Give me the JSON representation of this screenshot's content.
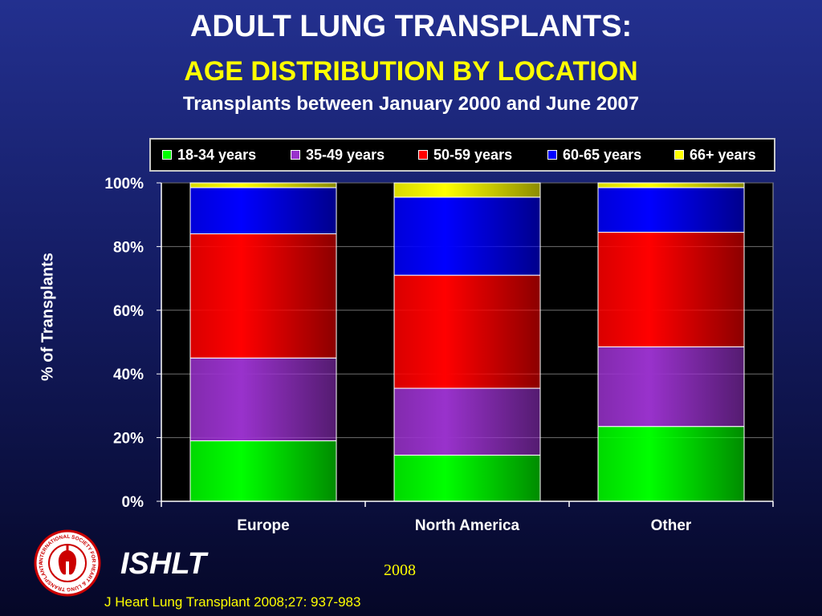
{
  "header": {
    "title": "ADULT LUNG TRANSPLANTS:",
    "subtitle": "AGE DISTRIBUTION BY LOCATION",
    "subtitle2": "Transplants between January 2000 and June 2007"
  },
  "chart_data": {
    "type": "bar",
    "stacked": true,
    "percent": true,
    "categories": [
      "Europe",
      "North America",
      "Other"
    ],
    "series": [
      {
        "name": "18-34 years",
        "values": [
          19,
          14.5,
          23.5
        ],
        "color": "#00ff00"
      },
      {
        "name": "35-49 years",
        "values": [
          26,
          21,
          25
        ],
        "color": "#9932cc"
      },
      {
        "name": "50-59 years",
        "values": [
          39,
          35.5,
          36
        ],
        "color": "#ff0000"
      },
      {
        "name": "60-65 years",
        "values": [
          14.5,
          24.5,
          14
        ],
        "color": "#0000ff"
      },
      {
        "name": "66+ years",
        "values": [
          1.5,
          4.5,
          1.5
        ],
        "color": "#ffff00"
      }
    ],
    "ylabel": "% of Transplants",
    "ylim": [
      0,
      100
    ],
    "yticks": [
      "0%",
      "20%",
      "40%",
      "60%",
      "80%",
      "100%"
    ],
    "grid": true,
    "legend_position": "top"
  },
  "footer": {
    "org": "ISHLT",
    "year": "2008",
    "citation": "J Heart Lung Transplant 2008;27: 937-983",
    "logo_text": "INTERNATIONAL SOCIETY FOR HEART & LUNG TRANSPLANTATION"
  },
  "colors": {
    "title": "#ffffff",
    "subtitle": "#ffff00",
    "plot_background": "#000000"
  }
}
